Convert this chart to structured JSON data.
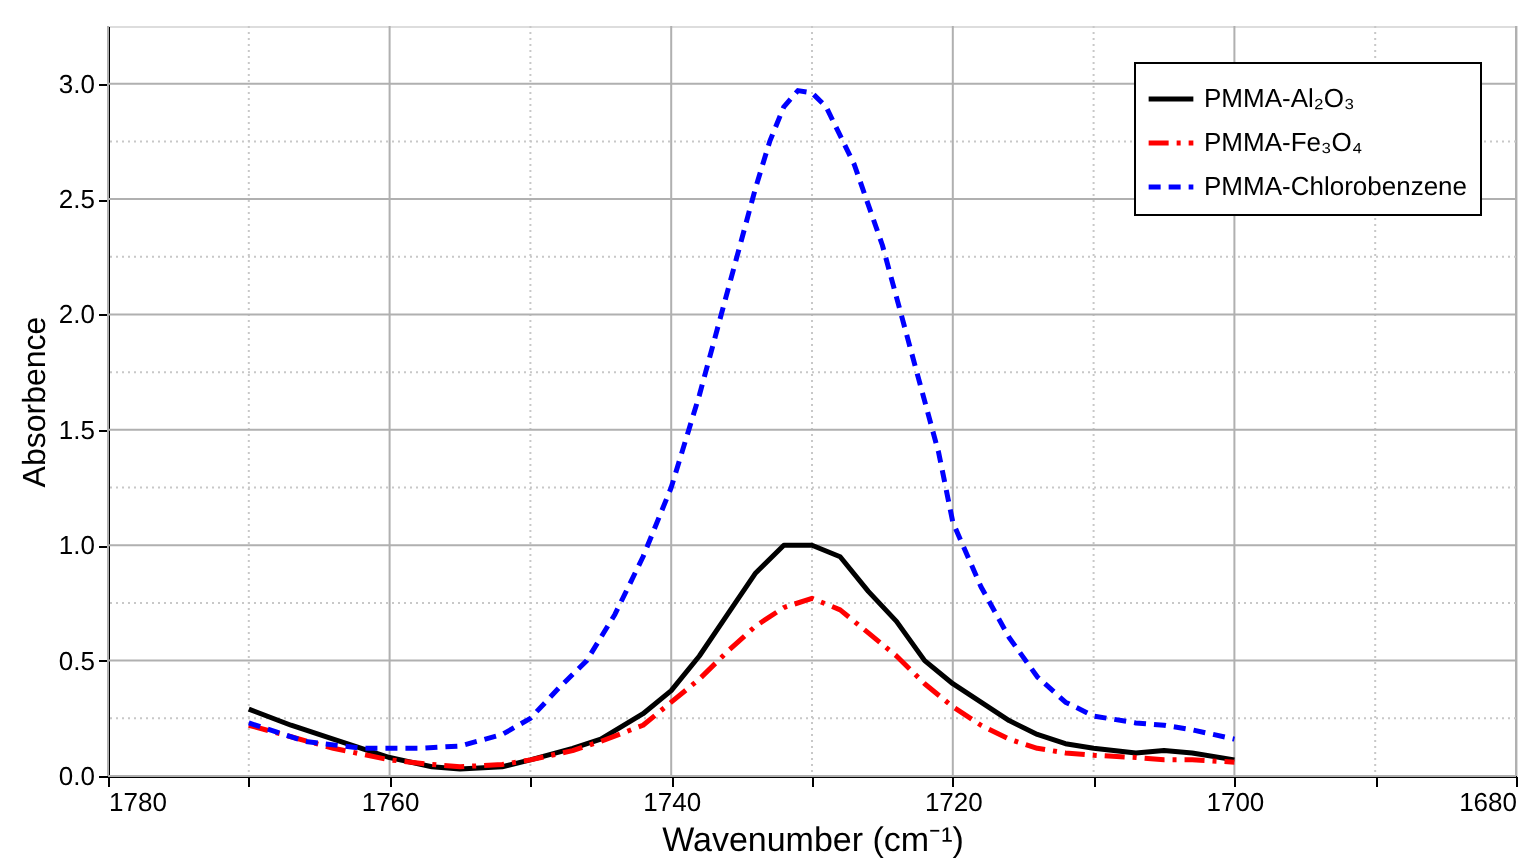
{
  "chart_data": {
    "type": "line",
    "xlabel": "Wavenumber (cm⁻¹)",
    "ylabel": "Absorbence",
    "xlim": [
      1780,
      1680
    ],
    "ylim": [
      0,
      3.25
    ],
    "xticks": [
      1780,
      {
        "value": 1770,
        "label": null
      },
      1760,
      {
        "value": 1750,
        "label": null
      },
      1740,
      {
        "value": 1730,
        "label": null
      },
      1720,
      {
        "value": 1710,
        "label": null
      },
      1700,
      {
        "value": 1690,
        "label": null
      },
      1680
    ],
    "yticks": [
      {
        "value": 0,
        "label": "0.0"
      },
      {
        "value": 0.25,
        "label": null
      },
      {
        "value": 0.5,
        "label": "0.5"
      },
      {
        "value": 0.75,
        "label": null
      },
      {
        "value": 1,
        "label": "1.0"
      },
      {
        "value": 1.25,
        "label": null
      },
      {
        "value": 1.5,
        "label": "1.5"
      },
      {
        "value": 1.75,
        "label": null
      },
      {
        "value": 2,
        "label": "2.0"
      },
      {
        "value": 2.25,
        "label": null
      },
      {
        "value": 2.5,
        "label": "2.5"
      },
      {
        "value": 2.75,
        "label": null
      },
      {
        "value": 3,
        "label": "3.0"
      }
    ],
    "grid": true,
    "legend": "top right",
    "marker": "none",
    "x": [
      1770,
      1767,
      1764,
      1760,
      1757,
      1755,
      1752,
      1750,
      1747,
      1745,
      1742,
      1740,
      1738,
      1736,
      1734,
      1732,
      1730,
      1728,
      1726,
      1724,
      1722,
      1720,
      1718,
      1716,
      1714,
      1712,
      1710,
      1707,
      1705,
      1703,
      1700
    ],
    "series": [
      {
        "name": "PMMA-Al₂O₃",
        "color": "#000000",
        "line_style": "solid",
        "values": [
          0.29,
          0.22,
          0.16,
          0.08,
          0.04,
          0.03,
          0.04,
          0.07,
          0.12,
          0.16,
          0.27,
          0.37,
          0.52,
          0.7,
          0.88,
          1.0,
          1.0,
          0.95,
          0.8,
          0.67,
          0.5,
          0.4,
          0.32,
          0.24,
          0.18,
          0.14,
          0.12,
          0.1,
          0.11,
          0.1,
          0.07
        ]
      },
      {
        "name": "PMMA-Fe₃O₄",
        "color": "#ff0000",
        "line_style": "dashdot",
        "values": [
          0.22,
          0.17,
          0.12,
          0.07,
          0.05,
          0.04,
          0.05,
          0.07,
          0.11,
          0.15,
          0.22,
          0.32,
          0.42,
          0.54,
          0.65,
          0.73,
          0.77,
          0.72,
          0.62,
          0.52,
          0.4,
          0.3,
          0.22,
          0.16,
          0.12,
          0.1,
          0.09,
          0.08,
          0.07,
          0.07,
          0.06
        ]
      },
      {
        "name": "PMMA-Chlorobenzene",
        "color": "#0000ff",
        "line_style": "dashed",
        "x": [
          1770,
          1766,
          1762,
          1758,
          1755,
          1752,
          1750,
          1748,
          1746,
          1744,
          1742,
          1740,
          1738,
          1736,
          1734,
          1733,
          1732,
          1731,
          1730,
          1729,
          1727,
          1725,
          1723,
          1721,
          1720,
          1718,
          1716,
          1714,
          1712,
          1710,
          1707,
          1705,
          1703,
          1700
        ],
        "values": [
          0.23,
          0.15,
          0.12,
          0.12,
          0.13,
          0.18,
          0.25,
          0.38,
          0.5,
          0.7,
          0.95,
          1.25,
          1.65,
          2.1,
          2.55,
          2.75,
          2.9,
          2.97,
          2.96,
          2.9,
          2.65,
          2.3,
          1.85,
          1.4,
          1.1,
          0.82,
          0.6,
          0.43,
          0.32,
          0.26,
          0.23,
          0.22,
          0.2,
          0.16
        ]
      }
    ]
  }
}
